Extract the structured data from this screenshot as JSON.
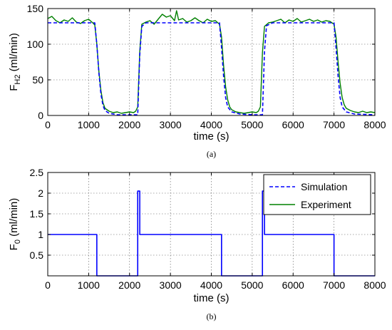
{
  "chart_data": [
    {
      "type": "line",
      "caption": "(a)",
      "xlabel": "time (s)",
      "ylabel_main": "F",
      "ylabel_sub": "H2",
      "ylabel_unit": " (ml/min)",
      "xlim": [
        0,
        8000
      ],
      "ylim": [
        0,
        150
      ],
      "xticks": [
        0,
        1000,
        2000,
        3000,
        4000,
        5000,
        6000,
        7000,
        8000
      ],
      "yticks": [
        0,
        50,
        100,
        150
      ],
      "grid": true,
      "series": [
        {
          "role": "simulation",
          "color": "#0000ff",
          "style": "dashed",
          "x": [
            0,
            1150,
            1200,
            1250,
            1300,
            1350,
            1400,
            1500,
            1700,
            2000,
            2200,
            2250,
            2300,
            2400,
            3000,
            4200,
            4250,
            4300,
            4350,
            4400,
            4500,
            4700,
            5000,
            5250,
            5300,
            5350,
            5500,
            6000,
            7000,
            7050,
            7100,
            7150,
            7200,
            7300,
            7500,
            8000
          ],
          "y": [
            130,
            130,
            100,
            60,
            30,
            14,
            7,
            3,
            1,
            1,
            1,
            85,
            125,
            130,
            130,
            130,
            95,
            55,
            25,
            12,
            5,
            2,
            1,
            1,
            90,
            126,
            130,
            130,
            130,
            95,
            55,
            25,
            12,
            5,
            2,
            1
          ]
        },
        {
          "role": "experiment",
          "color": "#008000",
          "style": "solid",
          "x": [
            0,
            100,
            200,
            300,
            400,
            500,
            600,
            700,
            800,
            900,
            1000,
            1100,
            1150,
            1200,
            1250,
            1300,
            1350,
            1400,
            1500,
            1600,
            1700,
            1800,
            1900,
            2000,
            2100,
            2150,
            2200,
            2250,
            2300,
            2400,
            2500,
            2600,
            2700,
            2800,
            2900,
            3000,
            3100,
            3150,
            3200,
            3300,
            3400,
            3500,
            3600,
            3700,
            3800,
            3900,
            4000,
            4100,
            4200,
            4250,
            4300,
            4350,
            4400,
            4450,
            4500,
            4600,
            4700,
            4800,
            4900,
            5000,
            5100,
            5150,
            5200,
            5250,
            5300,
            5400,
            5500,
            5600,
            5700,
            5800,
            5900,
            6000,
            6100,
            6200,
            6300,
            6400,
            6500,
            6600,
            6700,
            6800,
            6900,
            7000,
            7050,
            7100,
            7150,
            7200,
            7250,
            7300,
            7400,
            7500,
            7600,
            7700,
            7800,
            7900,
            8000
          ],
          "y": [
            136,
            139,
            133,
            130,
            134,
            132,
            137,
            131,
            129,
            133,
            135,
            130,
            127,
            100,
            62,
            35,
            18,
            10,
            6,
            4,
            5,
            3,
            4,
            5,
            4,
            6,
            12,
            90,
            128,
            131,
            133,
            128,
            135,
            142,
            138,
            140,
            133,
            147,
            134,
            136,
            131,
            133,
            137,
            133,
            130,
            135,
            132,
            133,
            128,
            110,
            70,
            40,
            22,
            12,
            8,
            5,
            4,
            3,
            4,
            5,
            4,
            6,
            12,
            88,
            125,
            130,
            131,
            133,
            135,
            130,
            134,
            132,
            136,
            131,
            133,
            135,
            132,
            134,
            131,
            133,
            132,
            128,
            110,
            75,
            45,
            25,
            15,
            10,
            7,
            5,
            4,
            6,
            4,
            5,
            4
          ]
        }
      ]
    },
    {
      "type": "line",
      "caption": "(b)",
      "xlabel": "time (s)",
      "ylabel_main": "F",
      "ylabel_sub": "0",
      "ylabel_unit": " (ml/min)",
      "xlim": [
        0,
        8000
      ],
      "ylim": [
        0,
        2.5
      ],
      "xticks": [
        0,
        1000,
        2000,
        3000,
        4000,
        5000,
        6000,
        7000,
        8000
      ],
      "yticks": [
        0.5,
        1,
        1.5,
        2,
        2.5
      ],
      "grid": true,
      "legend": {
        "position": "top-right",
        "entries": [
          {
            "label": "Simulation",
            "color": "#0000ff",
            "style": "dashed"
          },
          {
            "label": "Experiment",
            "color": "#008000",
            "style": "solid"
          }
        ]
      },
      "series": [
        {
          "role": "input",
          "color": "#0000ff",
          "style": "solid",
          "x": [
            0,
            1200,
            1200,
            2200,
            2200,
            2250,
            2250,
            4250,
            4250,
            5250,
            5250,
            5300,
            5300,
            7000,
            7000,
            8000
          ],
          "y": [
            1,
            1,
            0,
            0,
            2.05,
            2.05,
            1,
            1,
            0,
            0,
            2.05,
            2.05,
            1,
            1,
            0,
            0
          ]
        }
      ]
    }
  ]
}
